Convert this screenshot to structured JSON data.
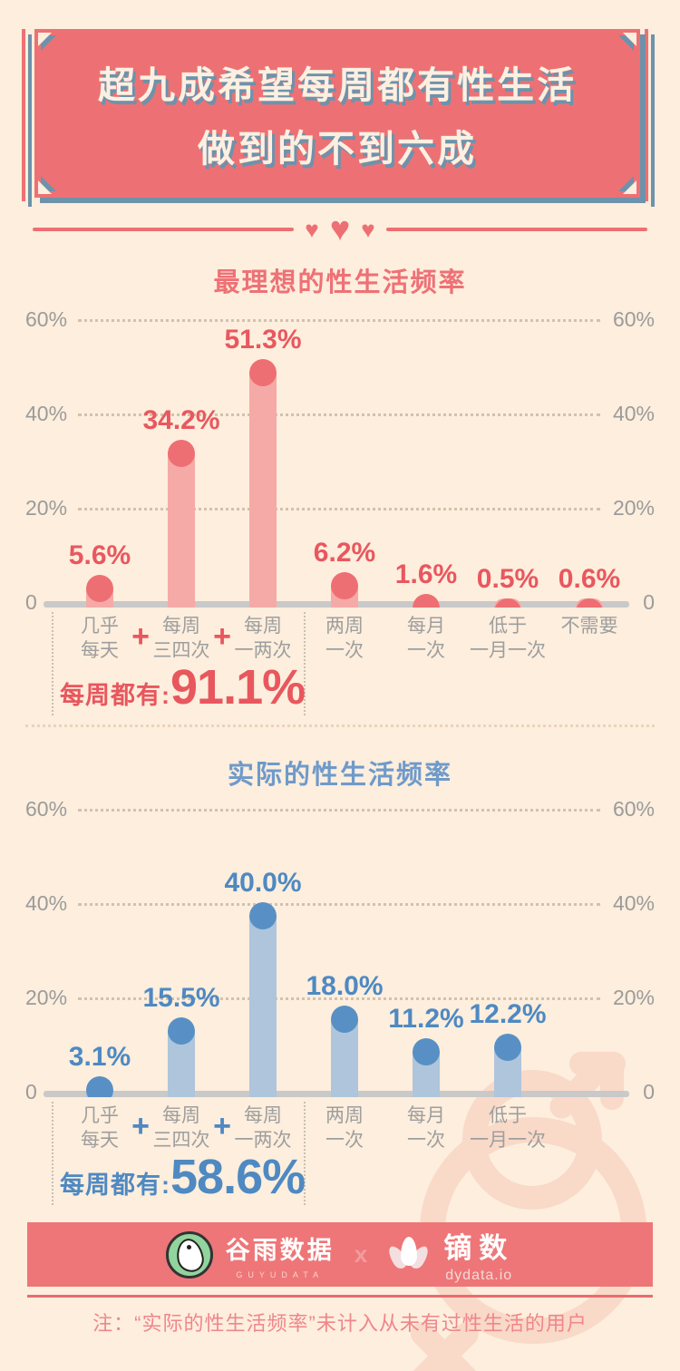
{
  "page": {
    "background": "#fdeedd"
  },
  "banner": {
    "line1": "超九成希望每周都有性生活",
    "line2": "做到的不到六成",
    "bg_color": "#ed7174",
    "shadow_color": "#6e92ab",
    "text_color": "#fdf0e1"
  },
  "icons": {
    "heart": "♥",
    "plus": "+"
  },
  "chart_data": [
    {
      "type": "bar",
      "title": "最理想的性生活频率",
      "unit": "%",
      "ylim": [
        0,
        60
      ],
      "grid": true,
      "y_ticks": [
        "0",
        "20%",
        "40%",
        "60%"
      ],
      "categories": [
        "几乎每天",
        "每周三四次",
        "每周一两次",
        "两周一次",
        "每月一次",
        "低于一月一次",
        "不需要"
      ],
      "category_lines": [
        [
          "几乎",
          "每天"
        ],
        [
          "每周",
          "三四次"
        ],
        [
          "每周",
          "一两次"
        ],
        [
          "两周",
          "一次"
        ],
        [
          "每月",
          "一次"
        ],
        [
          "低于",
          "一月一次"
        ],
        [
          "不需要"
        ]
      ],
      "values": [
        5.6,
        34.2,
        51.3,
        6.2,
        1.6,
        0.5,
        0.6
      ],
      "labels": [
        "5.6%",
        "34.2%",
        "51.3%",
        "6.2%",
        "1.6%",
        "0.5%",
        "0.6%"
      ],
      "plus_between": [
        [
          0,
          1
        ],
        [
          1,
          2
        ]
      ],
      "summary": {
        "label": "每周都有:",
        "value": "91.1%"
      },
      "colors": {
        "bar": "#f5aaa7",
        "dot": "#ee6f73",
        "label": "#e9575f",
        "title": "#ee7176",
        "accent": "#e8575e"
      }
    },
    {
      "type": "bar",
      "title": "实际的性生活频率",
      "unit": "%",
      "ylim": [
        0,
        60
      ],
      "grid": true,
      "y_ticks": [
        "0",
        "20%",
        "40%",
        "60%"
      ],
      "categories": [
        "几乎每天",
        "每周三四次",
        "每周一两次",
        "两周一次",
        "每月一次",
        "低于一月一次"
      ],
      "category_lines": [
        [
          "几乎",
          "每天"
        ],
        [
          "每周",
          "三四次"
        ],
        [
          "每周",
          "一两次"
        ],
        [
          "两周",
          "一次"
        ],
        [
          "每月",
          "一次"
        ],
        [
          "低于",
          "一月一次"
        ]
      ],
      "values": [
        3.1,
        15.5,
        40.0,
        18.0,
        11.2,
        12.2
      ],
      "labels": [
        "3.1%",
        "15.5%",
        "40.0%",
        "18.0%",
        "11.2%",
        "12.2%"
      ],
      "plus_between": [
        [
          0,
          1
        ],
        [
          1,
          2
        ]
      ],
      "summary": {
        "label": "每周都有:",
        "value": "58.6%"
      },
      "colors": {
        "bar": "#aec5db",
        "dot": "#5890c5",
        "label": "#4e89c2",
        "title": "#6f9aca",
        "accent": "#4e89c2"
      }
    }
  ],
  "axis_style": {
    "tick_color": "#9b9b9b",
    "grid_color": "#d2c2ad",
    "baseline_color": "#c9c9c9",
    "xlabel_color": "#9e9e9e",
    "separator_color": "#c9c0b2",
    "divider_color": "#ee6f73"
  },
  "footer": {
    "band_color": "#ee7678",
    "rule_color": "#e96b6e",
    "logo1_name": "谷雨数据",
    "logo1_sub": "GUYUDATA",
    "separator": "x",
    "logo2_name": "镝数",
    "logo2_sub": "dydata.io"
  },
  "note": {
    "text": "注：“实际的性生活频率”未计入从未有过性生活的用户",
    "color": "#ef868b"
  }
}
